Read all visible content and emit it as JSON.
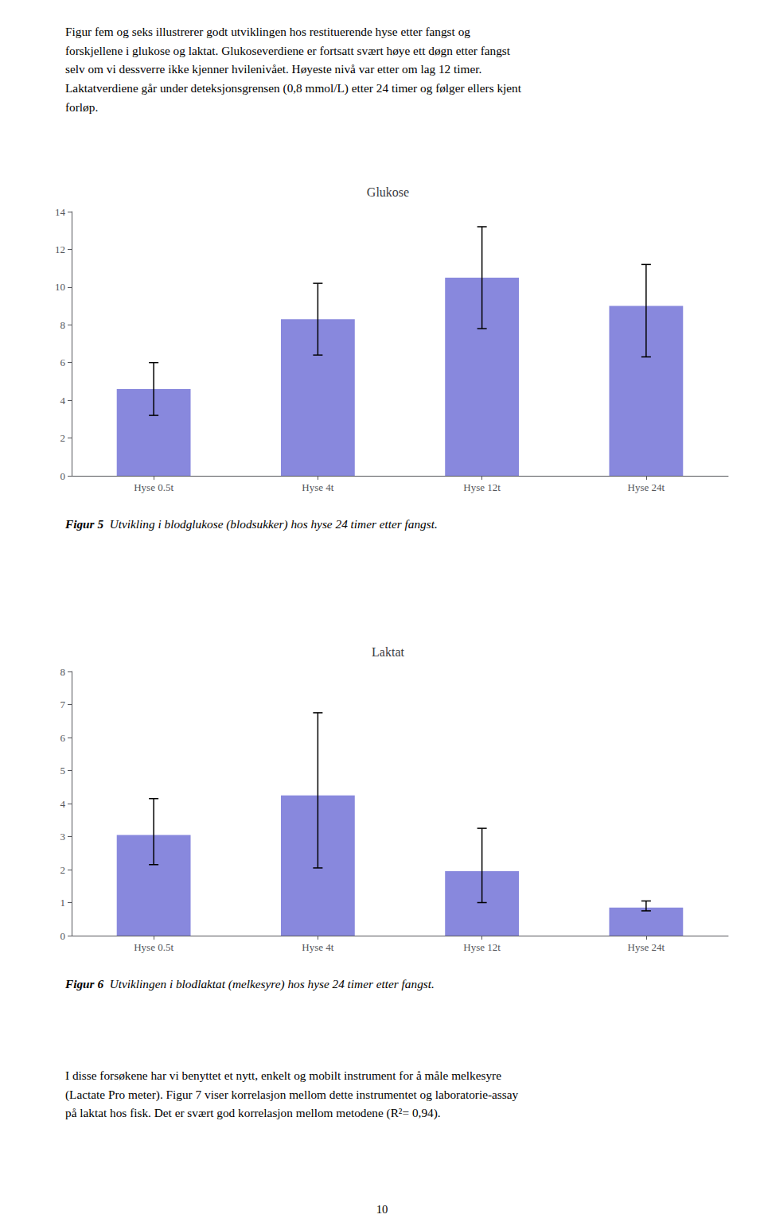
{
  "intro_text": [
    "Figur fem og seks illustrerer godt utviklingen hos restituerende hyse etter fangst og",
    "forskjellene i glukose og laktat. Glukoseverdiene er fortsatt svært høye ett døgn etter fangst",
    "selv om vi dessverre ikke kjenner hvilenivået. Høyeste nivå var etter om lag 12 timer.",
    "Laktatverdiene går under deteksjonsgrensen (0,8 mmol/L) etter 24 timer og følger ellers kjent",
    "forløp."
  ],
  "chart_data": [
    {
      "type": "bar",
      "title": "Glukose",
      "categories": [
        "Hyse 0.5t",
        "Hyse 4t",
        "Hyse 12t",
        "Hyse 24t"
      ],
      "values": [
        4.6,
        8.3,
        10.5,
        9.0
      ],
      "error_upper": [
        1.4,
        1.9,
        2.7,
        2.2
      ],
      "error_lower": [
        1.4,
        1.9,
        2.7,
        2.7
      ],
      "color": "#8888dd",
      "ylim": [
        0,
        14
      ],
      "yticks": [
        0,
        2,
        4,
        6,
        8,
        10,
        12,
        14
      ],
      "grid": false,
      "caption_label": "Figur 5",
      "caption": "Utvikling i blodglukose (blodsukker) hos hyse 24 timer etter fangst."
    },
    {
      "type": "bar",
      "title": "Laktat",
      "categories": [
        "Hyse 0.5t",
        "Hyse 4t",
        "Hyse 12t",
        "Hyse 24t"
      ],
      "values": [
        3.05,
        4.25,
        1.95,
        0.85
      ],
      "error_upper": [
        1.1,
        2.5,
        1.3,
        0.2
      ],
      "error_lower": [
        0.9,
        2.2,
        0.95,
        0.1
      ],
      "color": "#8888dd",
      "ylim": [
        0,
        8
      ],
      "yticks": [
        0,
        1,
        2,
        3,
        4,
        5,
        6,
        7,
        8
      ],
      "grid": false,
      "caption_label": "Figur 6",
      "caption": "Utviklingen i blodlaktat (melkesyre) hos hyse 24 timer etter fangst."
    }
  ],
  "bottom_text": [
    "I disse forsøkene har vi benyttet et nytt, enkelt og mobilt instrument for å måle melkesyre",
    "(Lactate Pro meter). Figur 7 viser korrelasjon mellom dette instrumentet og laboratorie-assay",
    "på laktat hos fisk. Det er svært god korrelasjon mellom metodene (R²= 0,94)."
  ],
  "page_number": "10"
}
